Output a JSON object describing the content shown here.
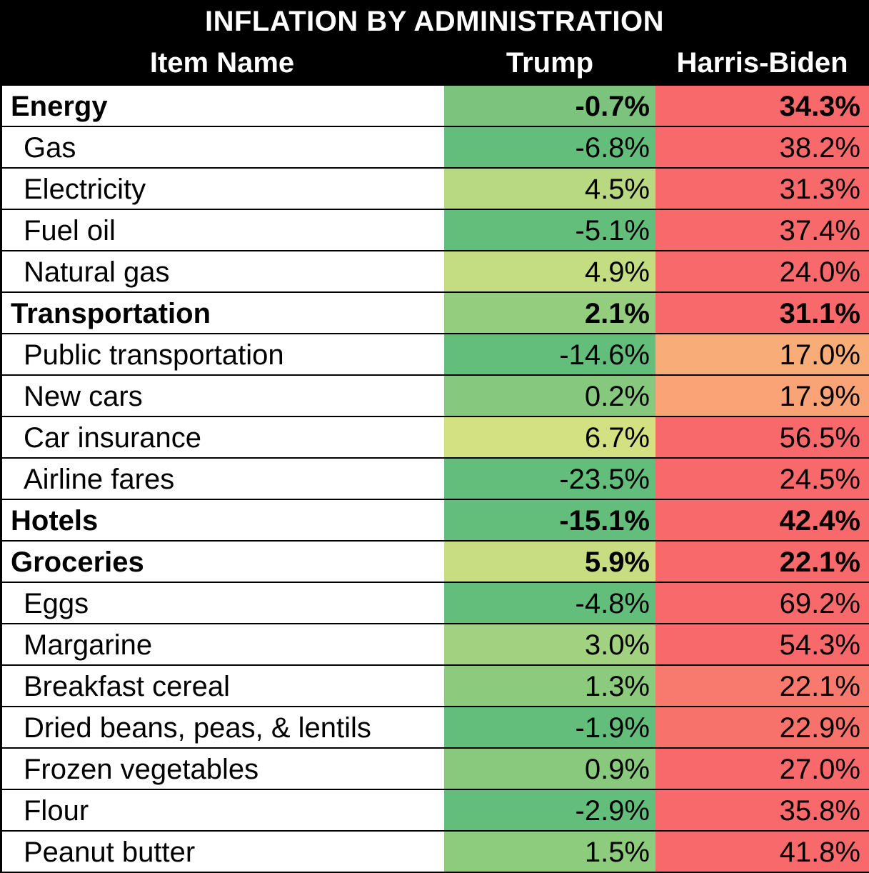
{
  "title": "INFLATION BY ADMINISTRATION",
  "columns": {
    "item": "Item Name",
    "trump": "Trump",
    "hb": "Harris-Biden"
  },
  "rows": [
    {
      "name": "Energy",
      "trump": "-0.7%",
      "hb": "34.3%",
      "category": true,
      "trump_color": "#7cc47e",
      "hb_color": "#f8696b"
    },
    {
      "name": "Gas",
      "trump": "-6.8%",
      "hb": "38.2%",
      "category": false,
      "trump_color": "#63be7b",
      "hb_color": "#f8696b"
    },
    {
      "name": "Electricity",
      "trump": "4.5%",
      "hb": "31.3%",
      "category": false,
      "trump_color": "#b8d981",
      "hb_color": "#f8696b"
    },
    {
      "name": "Fuel oil",
      "trump": "-5.1%",
      "hb": "37.4%",
      "category": false,
      "trump_color": "#63be7b",
      "hb_color": "#f8696b"
    },
    {
      "name": "Natural gas",
      "trump": "4.9%",
      "hb": "24.0%",
      "category": false,
      "trump_color": "#c4dc82",
      "hb_color": "#f8696b"
    },
    {
      "name": "Transportation",
      "trump": "2.1%",
      "hb": "31.1%",
      "category": true,
      "trump_color": "#94cd7e",
      "hb_color": "#f8696b"
    },
    {
      "name": "Public transportation",
      "trump": "-14.6%",
      "hb": "17.0%",
      "category": false,
      "trump_color": "#63be7b",
      "hb_color": "#f8ac77"
    },
    {
      "name": "New cars",
      "trump": "0.2%",
      "hb": "17.9%",
      "category": false,
      "trump_color": "#86c87d",
      "hb_color": "#f9a377"
    },
    {
      "name": "Car insurance",
      "trump": "6.7%",
      "hb": "56.5%",
      "category": false,
      "trump_color": "#d3e182",
      "hb_color": "#f8696b"
    },
    {
      "name": "Airline fares",
      "trump": "-23.5%",
      "hb": "24.5%",
      "category": false,
      "trump_color": "#63be7b",
      "hb_color": "#f8696b"
    },
    {
      "name": "Hotels",
      "trump": "-15.1%",
      "hb": "42.4%",
      "category": true,
      "trump_color": "#63be7b",
      "hb_color": "#f8696b"
    },
    {
      "name": "Groceries",
      "trump": "5.9%",
      "hb": "22.1%",
      "category": true,
      "trump_color": "#c8dc81",
      "hb_color": "#f8696b"
    },
    {
      "name": "Eggs",
      "trump": "-4.8%",
      "hb": "69.2%",
      "category": false,
      "trump_color": "#63be7b",
      "hb_color": "#f8696b"
    },
    {
      "name": "Margarine",
      "trump": "3.0%",
      "hb": "54.3%",
      "category": false,
      "trump_color": "#a2d17f",
      "hb_color": "#f8696b"
    },
    {
      "name": "Breakfast cereal",
      "trump": "1.3%",
      "hb": "22.1%",
      "category": false,
      "trump_color": "#8ccb7d",
      "hb_color": "#f8796e"
    },
    {
      "name": "Dried beans, peas, & lentils",
      "trump": "-1.9%",
      "hb": "22.9%",
      "category": false,
      "trump_color": "#63be7b",
      "hb_color": "#f8726c"
    },
    {
      "name": "Frozen vegetables",
      "trump": "0.9%",
      "hb": "27.0%",
      "category": false,
      "trump_color": "#89c97d",
      "hb_color": "#f8696b"
    },
    {
      "name": "Flour",
      "trump": "-2.9%",
      "hb": "35.8%",
      "category": false,
      "trump_color": "#63be7b",
      "hb_color": "#f8696b"
    },
    {
      "name": "Peanut butter",
      "trump": "1.5%",
      "hb": "41.8%",
      "category": false,
      "trump_color": "#8dcb7d",
      "hb_color": "#f8696b"
    }
  ]
}
